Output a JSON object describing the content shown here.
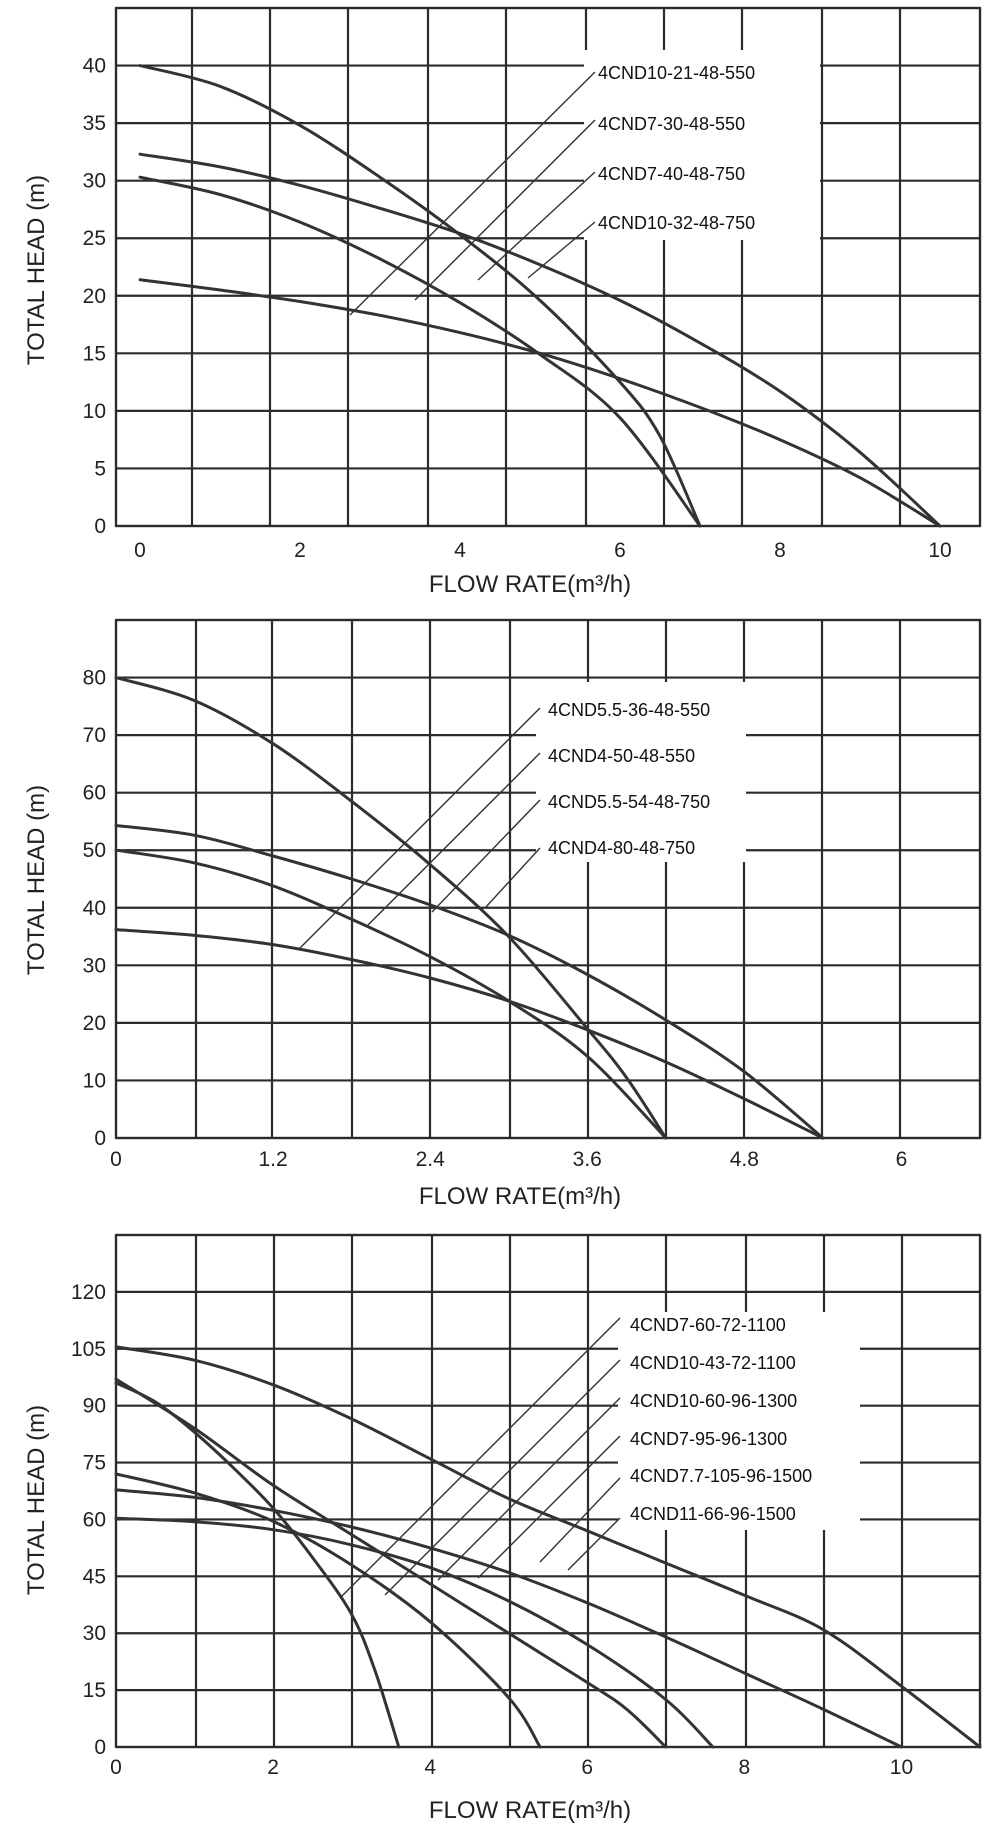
{
  "chart_data": [
    {
      "type": "line",
      "title": "",
      "xlabel": "FLOW RATE(m³/h)",
      "ylabel": "TOTAL HEAD  (m)",
      "xlim": [
        -0.3,
        10.5
      ],
      "ylim": [
        0,
        45
      ],
      "x_ticks": [
        0,
        2,
        4,
        6,
        8,
        10
      ],
      "x_tick_labels": [
        "0",
        "2",
        "4",
        "6",
        "8",
        "10"
      ],
      "y_ticks": [
        0,
        5,
        10,
        15,
        20,
        25,
        30,
        35,
        40
      ],
      "y_tick_labels": [
        "0",
        "5",
        "10",
        "15",
        "20",
        "25",
        "30",
        "35",
        "40"
      ],
      "grid": true,
      "legend": [
        "4CND10-21-48-550",
        "4CND7-30-48-550",
        "4CND7-40-48-750",
        "4CND10-32-48-750"
      ],
      "series": [
        {
          "name": "4CND10-21-48-550",
          "x": [
            0,
            1,
            2,
            3,
            4,
            5,
            6,
            7,
            8,
            9,
            10
          ],
          "y": [
            21.4,
            20.5,
            19.5,
            18.3,
            16.8,
            15.0,
            12.8,
            10.3,
            7.5,
            4.2,
            0
          ]
        },
        {
          "name": "4CND7-30-48-550",
          "x": [
            0,
            1,
            2,
            3,
            4,
            5,
            6,
            7
          ],
          "y": [
            30.3,
            28.8,
            26.4,
            23.2,
            19.4,
            14.9,
            9.4,
            0
          ]
        },
        {
          "name": "4CND7-40-48-750",
          "x": [
            0,
            1,
            2,
            3,
            4,
            5,
            6,
            6.5,
            7
          ],
          "y": [
            40.0,
            38.2,
            34.8,
            30.3,
            25.3,
            19.6,
            12.5,
            7.8,
            0
          ]
        },
        {
          "name": "4CND10-32-48-750",
          "x": [
            0,
            1,
            2,
            3,
            4,
            5,
            6,
            7,
            8,
            9,
            10
          ],
          "y": [
            32.3,
            31.2,
            29.6,
            27.6,
            25.4,
            22.7,
            19.6,
            15.9,
            11.7,
            6.4,
            0
          ]
        }
      ]
    },
    {
      "type": "line",
      "title": "",
      "xlabel": "FLOW RATE(m³/h)",
      "ylabel": "TOTAL HEAD  (m)",
      "xlim": [
        0,
        6.6
      ],
      "ylim": [
        0,
        90
      ],
      "x_ticks": [
        0,
        1.2,
        2.4,
        3.6,
        4.8,
        6
      ],
      "x_tick_labels": [
        "0",
        "1.2",
        "2.4",
        "3.6",
        "4.8",
        "6"
      ],
      "y_ticks": [
        0,
        10,
        20,
        30,
        40,
        50,
        60,
        70,
        80
      ],
      "y_tick_labels": [
        "0",
        "10",
        "20",
        "30",
        "40",
        "50",
        "60",
        "70",
        "80"
      ],
      "grid": true,
      "legend": [
        "4CND5.5-36-48-550",
        "4CND4-50-48-550",
        "4CND5.5-54-48-750",
        "4CND4-80-48-750"
      ],
      "series": [
        {
          "name": "4CND5.5-36-48-550",
          "x": [
            0,
            0.6,
            1.2,
            1.8,
            2.4,
            3.0,
            3.6,
            4.2,
            4.8,
            5.4
          ],
          "y": [
            36.2,
            35.2,
            33.6,
            31.0,
            27.8,
            23.8,
            18.8,
            13.2,
            6.8,
            0
          ]
        },
        {
          "name": "4CND4-50-48-550",
          "x": [
            0,
            0.6,
            1.2,
            1.8,
            2.4,
            3.0,
            3.6,
            4.2
          ],
          "y": [
            50.0,
            47.8,
            43.8,
            38.0,
            31.5,
            23.8,
            14.2,
            0
          ]
        },
        {
          "name": "4CND5.5-54-48-750",
          "x": [
            0,
            0.6,
            1.2,
            1.8,
            2.4,
            3.0,
            3.6,
            4.2,
            4.8,
            5.4
          ],
          "y": [
            54.3,
            52.6,
            49.0,
            45.0,
            40.5,
            35.2,
            28.4,
            20.5,
            11.5,
            0
          ]
        },
        {
          "name": "4CND4-80-48-750",
          "x": [
            0,
            0.6,
            1.2,
            1.8,
            2.4,
            3.0,
            3.6,
            3.9,
            4.2
          ],
          "y": [
            80.0,
            76.0,
            68.5,
            58.5,
            47.5,
            35.0,
            19.0,
            10.5,
            0
          ]
        }
      ]
    },
    {
      "type": "line",
      "title": "",
      "xlabel": "FLOW RATE(m³/h)",
      "ylabel": "TOTAL HEAD  (m)",
      "xlim": [
        0,
        11
      ],
      "ylim": [
        0,
        135
      ],
      "x_ticks": [
        0,
        2,
        4,
        6,
        8,
        10
      ],
      "x_tick_labels": [
        "0",
        "2",
        "4",
        "6",
        "8",
        "10"
      ],
      "y_ticks": [
        0,
        15,
        30,
        45,
        60,
        75,
        90,
        105,
        120
      ],
      "y_tick_labels": [
        "0",
        "15",
        "30",
        "45",
        "60",
        "75",
        "90",
        "105",
        "120"
      ],
      "grid": true,
      "legend": [
        "4CND7-60-72-1100",
        "4CND10-43-72-1100",
        "4CND10-60-96-1300",
        "4CND7-95-96-1300",
        "4CND7.7-105-96-1500",
        "4CND11-66-96-1500"
      ],
      "series": [
        {
          "name": "4CND7-60-72-1100",
          "x": [
            0,
            1,
            2,
            3,
            4,
            5,
            5.4
          ],
          "y": [
            72.0,
            67.0,
            59.5,
            48.0,
            33.0,
            13.0,
            0
          ]
        },
        {
          "name": "4CND10-43-72-1100",
          "x": [
            0,
            1,
            2,
            3,
            4,
            5,
            6,
            7,
            7.6
          ],
          "y": [
            60.3,
            59.4,
            57.3,
            53.3,
            47.3,
            38.5,
            27.0,
            12.5,
            0
          ]
        },
        {
          "name": "4CND10-60-96-1300",
          "x": [
            0,
            0.5,
            1,
            1.5,
            2,
            2.5,
            3,
            3.3,
            3.6
          ],
          "y": [
            96.0,
            91.0,
            83.0,
            73.5,
            63.0,
            50.0,
            35.0,
            20.0,
            0
          ]
        },
        {
          "name": "4CND7-95-96-1300",
          "x": [
            0,
            1,
            2,
            3,
            4,
            5,
            6,
            6.5,
            7
          ],
          "y": [
            97.0,
            84.0,
            69.0,
            56.0,
            43.0,
            30.0,
            17.0,
            10.0,
            0
          ]
        },
        {
          "name": "4CND7.7-105-96-1500",
          "x": [
            0,
            1,
            2,
            3,
            4,
            5,
            6,
            7,
            8,
            9,
            10
          ],
          "y": [
            67.8,
            65.8,
            62.4,
            58.0,
            52.5,
            46.0,
            38.0,
            29.0,
            19.5,
            10.0,
            0
          ]
        },
        {
          "name": "4CND11-66-96-1500",
          "x": [
            0,
            1,
            2,
            3,
            4,
            5,
            6,
            7,
            8,
            9,
            10,
            11
          ],
          "y": [
            105.5,
            102.0,
            95.5,
            86.5,
            76.0,
            65.5,
            57.0,
            48.5,
            40.0,
            31.0,
            16.0,
            0
          ]
        }
      ]
    }
  ]
}
